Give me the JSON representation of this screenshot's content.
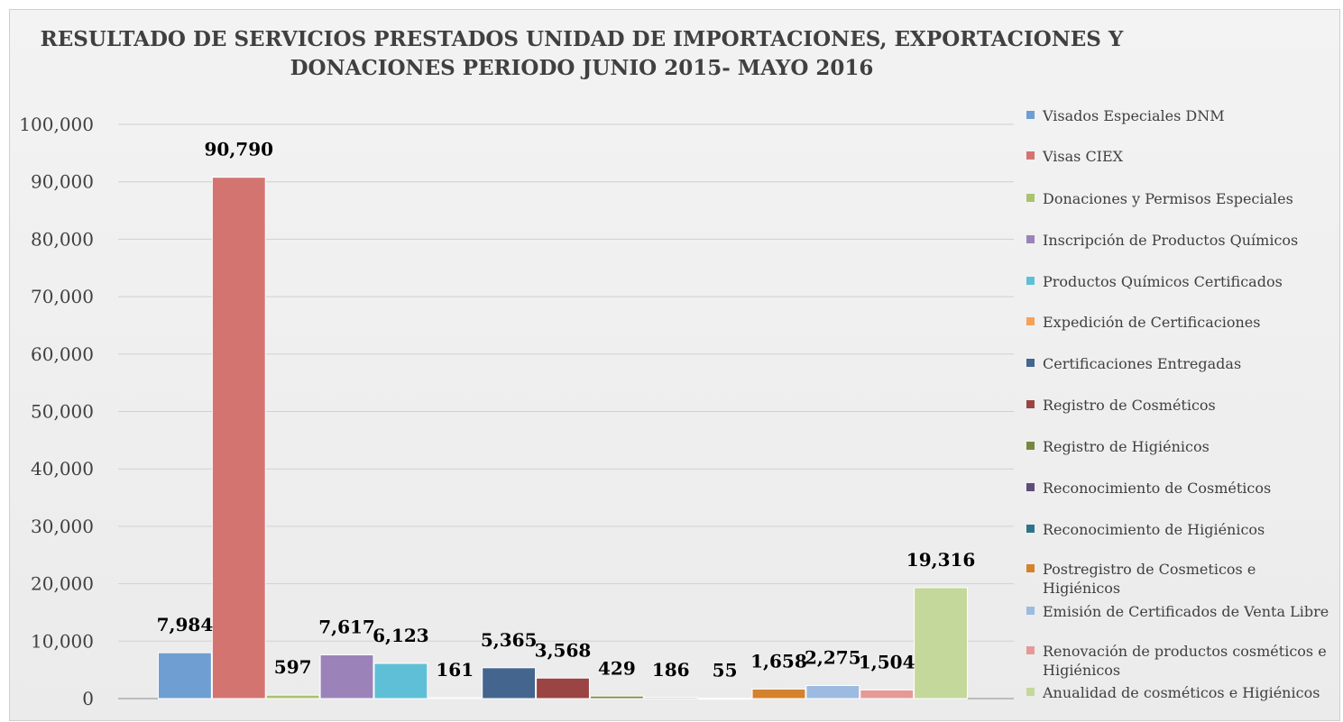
{
  "chart_data": {
    "type": "bar",
    "title": "RESULTADO DE SERVICIOS PRESTADOS UNIDAD DE IMPORTACIONES, EXPORTACIONES Y DONACIONES PERIODO JUNIO 2015- MAYO 2016",
    "xlabel": "",
    "ylabel": "",
    "ylim": [
      0,
      100000
    ],
    "yticks": [
      "0",
      "10,000",
      "20,000",
      "30,000",
      "40,000",
      "50,000",
      "60,000",
      "70,000",
      "80,000",
      "90,000",
      "100,000"
    ],
    "grid": true,
    "legend_position": "right",
    "series": [
      {
        "name": "Visados Especiales DNM",
        "value": 7984,
        "label": "7,984",
        "color": "#6f9fd2"
      },
      {
        "name": "Visas CIEX",
        "value": 90790,
        "label": "90,790",
        "color": "#d47470"
      },
      {
        "name": "Donaciones y Permisos Especiales",
        "value": 597,
        "label": "597",
        "color": "#a9c36f"
      },
      {
        "name": "Inscripción de Productos Químicos",
        "value": 7617,
        "label": "7,617",
        "color": "#9b83ba"
      },
      {
        "name": "Productos Químicos Certificados",
        "value": 6123,
        "label": "6,123",
        "color": "#5fbfd6"
      },
      {
        "name": "Expedición de Certificaciones",
        "value": 161,
        "label": "161",
        "color": "#f4a259"
      },
      {
        "name": "Certificaciones Entregadas",
        "value": 5365,
        "label": "5,365",
        "color": "#44658e"
      },
      {
        "name": "Registro de Cosméticos",
        "value": 3568,
        "label": "3,568",
        "color": "#9a4543"
      },
      {
        "name": "Registro de Higiénicos",
        "value": 429,
        "label": "429",
        "color": "#76883f"
      },
      {
        "name": "Reconocimiento de Cosméticos",
        "value": 186,
        "label": "186",
        "color": "#5f4c7a"
      },
      {
        "name": "Reconocimiento de Higiénicos",
        "value": 55,
        "label": "55",
        "color": "#2e7488"
      },
      {
        "name": "Postregistro de Cosmeticos e Higiénicos",
        "value": 1658,
        "label": "1,658",
        "color": "#d4822c"
      },
      {
        "name": "Emisión de  Certificados de Venta Libre",
        "value": 2275,
        "label": "2,275",
        "color": "#9dbbe0"
      },
      {
        "name": "Renovación de productos cosméticos e Higiénicos",
        "value": 1504,
        "label": "1,504",
        "color": "#e59a98"
      },
      {
        "name": "Anualidad de cosméticos e Higiénicos",
        "value": 19316,
        "label": "19,316",
        "color": "#c3d89a"
      }
    ]
  }
}
